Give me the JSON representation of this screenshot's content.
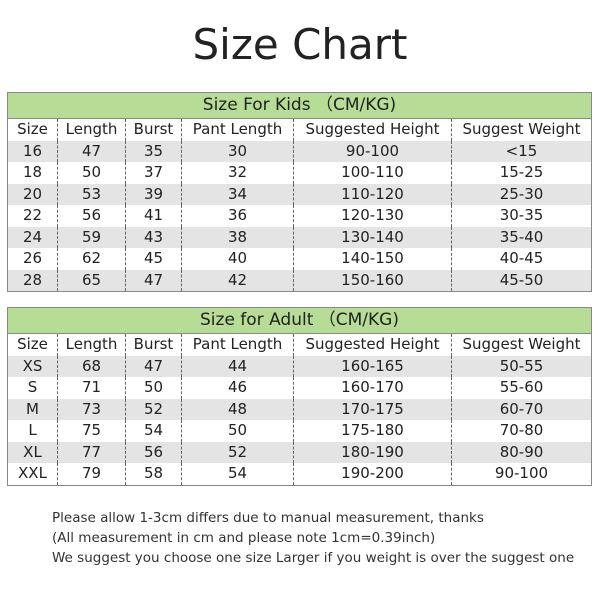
{
  "title": "Size Chart",
  "kids": {
    "title": "Size For Kids （CM/KG)",
    "headers": [
      "Size",
      "Length",
      "Burst",
      "Pant Length",
      "Suggested Height",
      "Suggest Weight"
    ],
    "rows": [
      [
        "16",
        "47",
        "35",
        "30",
        "90-100",
        "<15"
      ],
      [
        "18",
        "50",
        "37",
        "32",
        "100-110",
        "15-25"
      ],
      [
        "20",
        "53",
        "39",
        "34",
        "110-120",
        "25-30"
      ],
      [
        "22",
        "56",
        "41",
        "36",
        "120-130",
        "30-35"
      ],
      [
        "24",
        "59",
        "43",
        "38",
        "130-140",
        "35-40"
      ],
      [
        "26",
        "62",
        "45",
        "40",
        "140-150",
        "40-45"
      ],
      [
        "28",
        "65",
        "47",
        "42",
        "150-160",
        "45-50"
      ]
    ]
  },
  "adult": {
    "title": "Size for Adult （CM/KG)",
    "headers": [
      "Size",
      "Length",
      "Burst",
      "Pant Length",
      "Suggested Height",
      "Suggest Weight"
    ],
    "rows": [
      [
        "XS",
        "68",
        "47",
        "44",
        "160-165",
        "50-55"
      ],
      [
        "S",
        "71",
        "50",
        "46",
        "160-170",
        "55-60"
      ],
      [
        "M",
        "73",
        "52",
        "48",
        "170-175",
        "60-70"
      ],
      [
        "L",
        "75",
        "54",
        "50",
        "175-180",
        "70-80"
      ],
      [
        "XL",
        "77",
        "56",
        "52",
        "180-190",
        "80-90"
      ],
      [
        "XXL",
        "79",
        "58",
        "54",
        "190-200",
        "90-100"
      ]
    ]
  },
  "notes": [
    "Please allow 1-3cm differs due to manual measurement, thanks",
    "(All measurement in cm and please note 1cm=0.39inch)",
    "We suggest you choose one size Larger if you weight is over the suggest one"
  ]
}
